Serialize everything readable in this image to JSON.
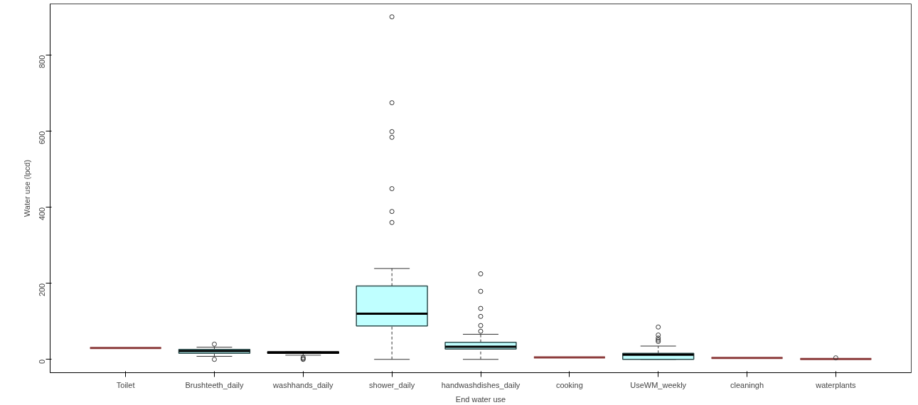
{
  "chart_data": {
    "type": "box",
    "xlabel": "End water use",
    "ylabel": "Water use (lpcd)",
    "categories": [
      "Toilet",
      "Brushteeth_daily",
      "washhands_daily",
      "shower_daily",
      "handwashdishes_daily",
      "cooking",
      "UseWM_weekly",
      "cleaningh",
      "waterplants"
    ],
    "color": "#bfffff",
    "colors": [
      "#8b3a3a",
      "#2f4f4f",
      "#000000",
      "#2f4f4f",
      "#2f4f4f",
      "#8b3a3a",
      "#2f4f4f",
      "#8b3a3a",
      "#8b3a3a"
    ],
    "boxes": [
      {
        "low": 30,
        "q1": 30,
        "median": 30,
        "q3": 30,
        "high": 30
      },
      {
        "low": 8,
        "q1": 16,
        "median": 22,
        "q3": 26,
        "high": 32,
        "outliers": [
          40,
          0
        ]
      },
      {
        "low": 11,
        "q1": 16,
        "median": 18,
        "q3": 20,
        "high": 20,
        "outliers": [
          5,
          2,
          0
        ]
      },
      {
        "low": 0,
        "q1": 88,
        "median": 120,
        "q3": 193,
        "high": 239,
        "outliers": [
          360,
          389,
          449,
          584,
          599,
          675,
          901
        ]
      },
      {
        "low": 0,
        "q1": 27,
        "median": 33,
        "q3": 45,
        "high": 66,
        "outliers": [
          74,
          89,
          113,
          134,
          179,
          225
        ]
      },
      {
        "low": 5,
        "q1": 5,
        "median": 5,
        "q3": 5,
        "high": 5
      },
      {
        "low": 0,
        "q1": 0,
        "median": 12,
        "q3": 16,
        "high": 35,
        "outliers": [
          47,
          51,
          56,
          64,
          85
        ]
      },
      {
        "low": 4,
        "q1": 4,
        "median": 4,
        "q3": 4,
        "high": 4
      },
      {
        "low": 1,
        "q1": 1,
        "median": 1,
        "q3": 1,
        "high": 1,
        "outliers": [
          4
        ]
      }
    ],
    "ylim": [
      -35,
      935
    ],
    "yticks": [
      0,
      200,
      400,
      600,
      800
    ],
    "grid": false
  }
}
